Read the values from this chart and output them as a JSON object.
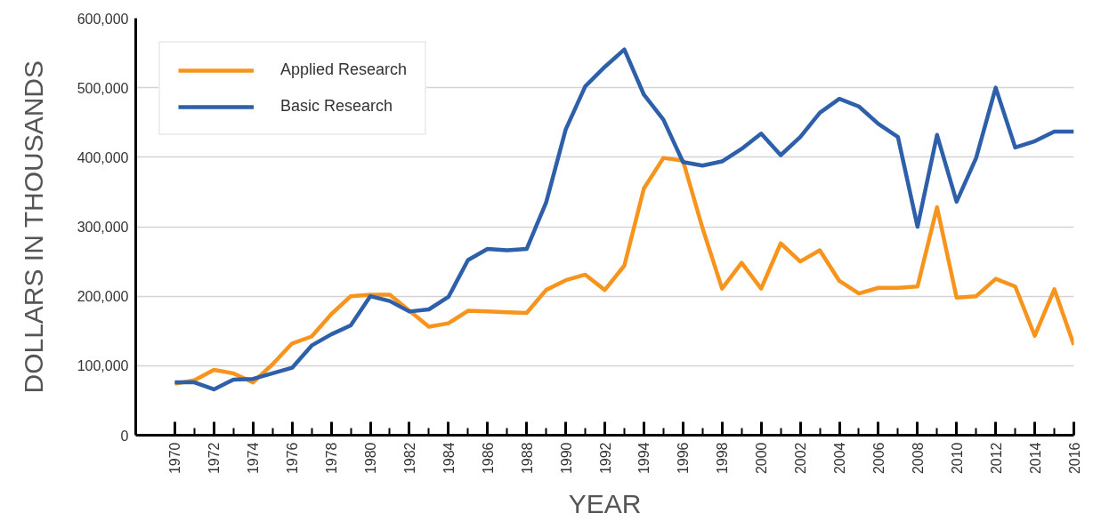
{
  "chart_data": {
    "type": "line",
    "xlabel": "YEAR",
    "ylabel": "DOLLARS IN THOUSANDS",
    "x": [
      1970,
      1971,
      1972,
      1973,
      1974,
      1975,
      1976,
      1977,
      1978,
      1979,
      1980,
      1981,
      1982,
      1983,
      1984,
      1985,
      1986,
      1987,
      1988,
      1989,
      1990,
      1991,
      1992,
      1993,
      1994,
      1995,
      1996,
      1997,
      1998,
      1999,
      2000,
      2001,
      2002,
      2003,
      2004,
      2005,
      2006,
      2007,
      2008,
      2009,
      2010,
      2011,
      2012,
      2013,
      2014,
      2015,
      2016
    ],
    "series": [
      {
        "name": "Applied Research",
        "color": "#f7941d",
        "values": [
          74000,
          79000,
          94000,
          89000,
          76000,
          102000,
          132000,
          142000,
          174000,
          200000,
          202000,
          202000,
          179000,
          156000,
          161000,
          179000,
          178000,
          177000,
          176000,
          209000,
          223000,
          231000,
          209000,
          244000,
          355000,
          399000,
          395000,
          298000,
          211000,
          248000,
          211000,
          276000,
          250000,
          266000,
          222000,
          204000,
          212000,
          212000,
          214000,
          328000,
          198000,
          200000,
          225000,
          214000,
          143000,
          210000,
          130000
        ]
      },
      {
        "name": "Basic Research",
        "color": "#2e5fa9",
        "values": [
          76000,
          76000,
          66000,
          80000,
          81000,
          89000,
          97000,
          129000,
          145000,
          158000,
          200000,
          193000,
          178000,
          181000,
          199000,
          252000,
          268000,
          266000,
          268000,
          335000,
          440000,
          502000,
          530000,
          555000,
          490000,
          454000,
          393000,
          388000,
          394000,
          412000,
          434000,
          403000,
          429000,
          464000,
          484000,
          473000,
          448000,
          429000,
          300000,
          432000,
          336000,
          399000,
          500000,
          414000,
          423000,
          437000,
          437000
        ]
      }
    ],
    "xlim": [
      1968,
      2016
    ],
    "ylim": [
      0,
      600000
    ],
    "xticks": [
      1970,
      {
        "value": 1971,
        "label": null
      },
      1972,
      {
        "value": 1973,
        "label": null
      },
      1974,
      {
        "value": 1975,
        "label": null
      },
      1976,
      {
        "value": 1977,
        "label": null
      },
      1978,
      {
        "value": 1979,
        "label": null
      },
      1980,
      {
        "value": 1981,
        "label": null
      },
      1982,
      {
        "value": 1983,
        "label": null
      },
      1984,
      {
        "value": 1985,
        "label": null
      },
      1986,
      {
        "value": 1987,
        "label": null
      },
      1988,
      {
        "value": 1989,
        "label": null
      },
      1990,
      {
        "value": 1991,
        "label": null
      },
      1992,
      {
        "value": 1993,
        "label": null
      },
      1994,
      {
        "value": 1995,
        "label": null
      },
      1996,
      {
        "value": 1997,
        "label": null
      },
      1998,
      {
        "value": 1999,
        "label": null
      },
      2000,
      {
        "value": 2001,
        "label": null
      },
      2002,
      {
        "value": 2003,
        "label": null
      },
      2004,
      {
        "value": 2005,
        "label": null
      },
      2006,
      {
        "value": 2007,
        "label": null
      },
      2008,
      {
        "value": 2009,
        "label": null
      },
      2010,
      {
        "value": 2011,
        "label": null
      },
      2012,
      {
        "value": 2013,
        "label": null
      },
      2014,
      {
        "value": 2015,
        "label": null
      },
      2016
    ],
    "yticks": [
      0,
      {
        "value": 100000,
        "label": "100,000"
      },
      {
        "value": 200000,
        "label": "200,000"
      },
      {
        "value": 300000,
        "label": "300,000"
      },
      {
        "value": 400000,
        "label": "400,000"
      },
      {
        "value": 500000,
        "label": "500,000"
      },
      {
        "value": 600000,
        "label": "600,000"
      }
    ],
    "grid": "y",
    "legend": "top left",
    "line_style": "solid"
  }
}
